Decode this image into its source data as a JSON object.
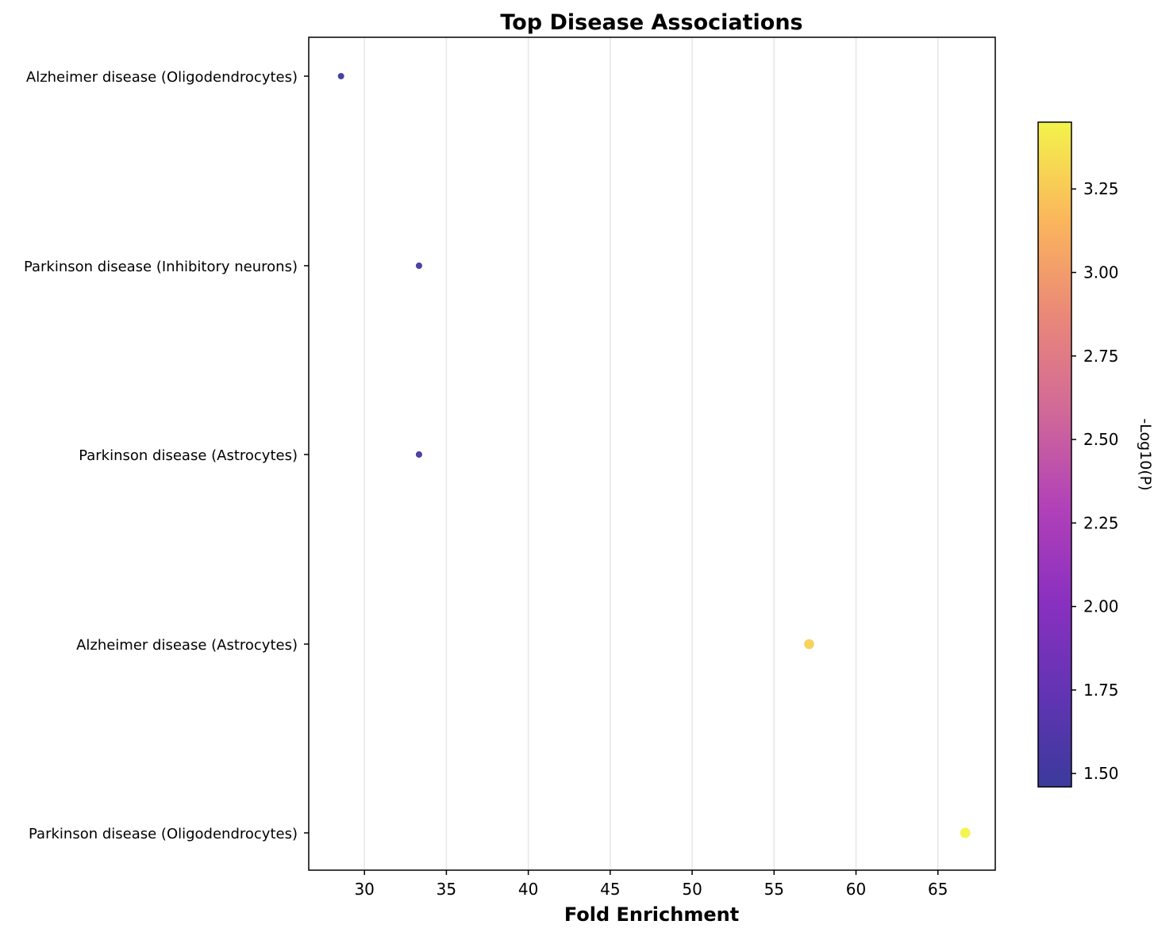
{
  "chart_data": {
    "type": "scatter",
    "title": "Top Disease Associations",
    "xlabel": "Fold Enrichment",
    "ylabel": "",
    "xlim": [
      26.6,
      68.5
    ],
    "xticks": [
      30,
      35,
      40,
      45,
      50,
      55,
      60,
      65
    ],
    "grid": "vertical",
    "categories": [
      "Alzheimer disease (Oligodendrocytes)",
      "Parkinson disease (Inhibitory neurons)",
      "Parkinson disease (Astrocytes)",
      "Alzheimer disease (Astrocytes)",
      "Parkinson disease (Oligodendrocytes)"
    ],
    "points": [
      {
        "category": "Alzheimer disease (Oligodendrocytes)",
        "fold_enrichment": 28.57,
        "neg_log10_p": 1.46
      },
      {
        "category": "Parkinson disease (Inhibitory neurons)",
        "fold_enrichment": 33.33,
        "neg_log10_p": 1.52
      },
      {
        "category": "Parkinson disease (Astrocytes)",
        "fold_enrichment": 33.33,
        "neg_log10_p": 1.52
      },
      {
        "category": "Alzheimer disease (Astrocytes)",
        "fold_enrichment": 57.14,
        "neg_log10_p": 3.28
      },
      {
        "category": "Parkinson disease (Oligodendrocytes)",
        "fold_enrichment": 66.67,
        "neg_log10_p": 3.45
      }
    ],
    "colorbar": {
      "label": "-Log10(P)",
      "colormap": "plasma",
      "range": [
        1.46,
        3.45
      ],
      "ticks": [
        1.5,
        1.75,
        2.0,
        2.25,
        2.5,
        2.75,
        3.0,
        3.25
      ],
      "tick_labels": [
        "1.50",
        "1.75",
        "2.00",
        "2.25",
        "2.50",
        "2.75",
        "3.00",
        "3.25"
      ],
      "position": "right"
    }
  }
}
